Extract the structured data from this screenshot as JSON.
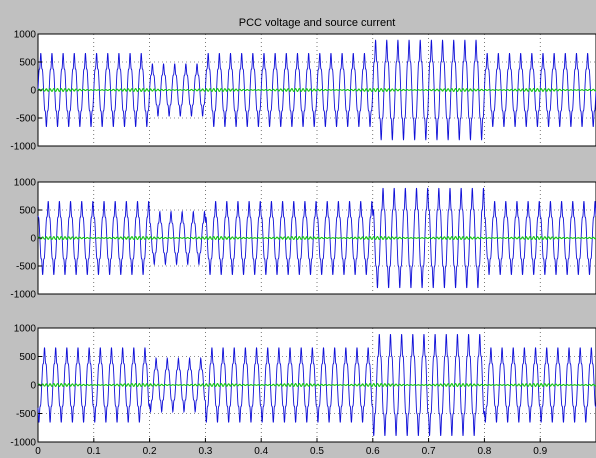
{
  "title": "PCC voltage and source current",
  "colors": {
    "background": "#c0c0c0",
    "plot_area": "#ffffff",
    "voltage_trace": "#1010d8",
    "current_trace": "#10c810",
    "grid": "#222222"
  },
  "chart_data": [
    {
      "type": "line",
      "title": "PCC voltage and source current",
      "xlim": [
        0,
        1
      ],
      "ylim": [
        -1000,
        1000
      ],
      "yticks": [
        1000,
        500,
        0,
        -500,
        -1000
      ],
      "ytick_labels": [
        "1000",
        "500",
        "0",
        "-500",
        "-1000"
      ],
      "xticks": [],
      "grid": true,
      "frequency_hz": 50,
      "series": [
        {
          "role": "voltage",
          "color": "#1010d8",
          "phase_deg": 0,
          "amplitude_segments": [
            {
              "x": [
                0.0,
                0.2
              ],
              "amplitude": 560
            },
            {
              "x": [
                0.2,
                0.3
              ],
              "amplitude": 400
            },
            {
              "x": [
                0.3,
                0.6
              ],
              "amplitude": 560
            },
            {
              "x": [
                0.6,
                0.8
              ],
              "amplitude": 760
            },
            {
              "x": [
                0.8,
                1.0
              ],
              "amplitude": 560
            }
          ]
        },
        {
          "role": "current",
          "color": "#10c810",
          "amplitude": 25
        }
      ]
    },
    {
      "type": "line",
      "xlim": [
        0,
        1
      ],
      "ylim": [
        -1000,
        1000
      ],
      "yticks": [
        1000,
        500,
        0,
        -500,
        -1000
      ],
      "ytick_labels": [
        "1000",
        "500",
        "0",
        "-500",
        "-1000"
      ],
      "xticks": [],
      "grid": true,
      "frequency_hz": 50,
      "series": [
        {
          "role": "voltage",
          "color": "#1010d8",
          "phase_deg": 120,
          "amplitude_segments": [
            {
              "x": [
                0.0,
                0.2
              ],
              "amplitude": 560
            },
            {
              "x": [
                0.2,
                0.3
              ],
              "amplitude": 400
            },
            {
              "x": [
                0.3,
                0.6
              ],
              "amplitude": 560
            },
            {
              "x": [
                0.6,
                0.8
              ],
              "amplitude": 760
            },
            {
              "x": [
                0.8,
                1.0
              ],
              "amplitude": 560
            }
          ]
        },
        {
          "role": "current",
          "color": "#10c810",
          "amplitude": 25
        }
      ]
    },
    {
      "type": "line",
      "xlim": [
        0,
        1
      ],
      "ylim": [
        -1000,
        1000
      ],
      "yticks": [
        1000,
        500,
        0,
        -500,
        -1000
      ],
      "ytick_labels": [
        "1000",
        "500",
        "0",
        "-500",
        "-1000"
      ],
      "xticks": [
        0,
        0.1,
        0.2,
        0.3,
        0.4,
        0.5,
        0.6,
        0.7,
        0.8,
        0.9
      ],
      "xtick_labels": [
        "0",
        "0.1",
        "0.2",
        "0.3",
        "0.4",
        "0.5",
        "0.6",
        "0.7",
        "0.8",
        "0.9"
      ],
      "grid": true,
      "frequency_hz": 50,
      "series": [
        {
          "role": "voltage",
          "color": "#1010d8",
          "phase_deg": 240,
          "amplitude_segments": [
            {
              "x": [
                0.0,
                0.2
              ],
              "amplitude": 560
            },
            {
              "x": [
                0.2,
                0.3
              ],
              "amplitude": 400
            },
            {
              "x": [
                0.3,
                0.6
              ],
              "amplitude": 560
            },
            {
              "x": [
                0.6,
                0.8
              ],
              "amplitude": 760
            },
            {
              "x": [
                0.8,
                1.0
              ],
              "amplitude": 560
            }
          ]
        },
        {
          "role": "current",
          "color": "#10c810",
          "amplitude": 25
        }
      ]
    }
  ]
}
